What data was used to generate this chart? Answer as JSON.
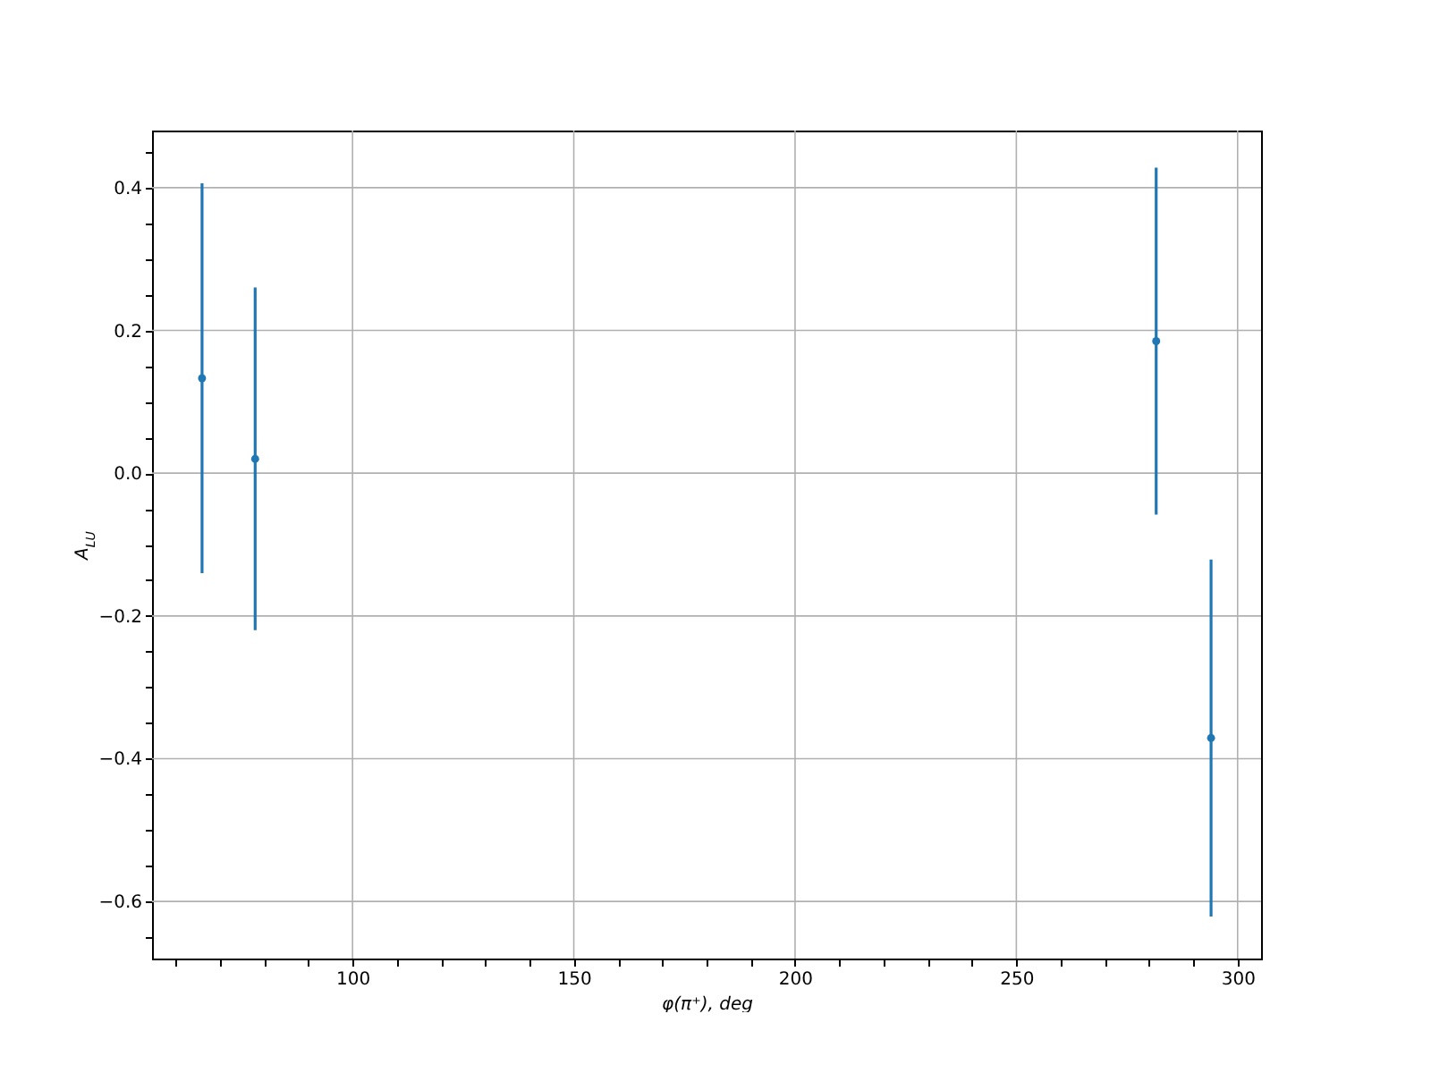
{
  "chart_data": {
    "type": "scatter",
    "xlabel": "φ(π⁺), deg",
    "ylabel": "A$_{LU}$",
    "x": [
      66,
      78,
      281.6,
      294
    ],
    "series": [
      {
        "color": "#1f77b4",
        "values": [
          0.133,
          0.02,
          0.185,
          -0.371
        ],
        "errors": [
          0.273,
          0.24,
          0.243,
          0.25
        ]
      }
    ],
    "xlim": [
      54.7,
      305.3
    ],
    "xticks": [
      {
        "value": 60,
        "label": null
      },
      {
        "value": 70,
        "label": null
      },
      {
        "value": 80,
        "label": null
      },
      {
        "value": 90,
        "label": null
      },
      100,
      {
        "value": 110,
        "label": null
      },
      {
        "value": 120,
        "label": null
      },
      {
        "value": 130,
        "label": null
      },
      {
        "value": 140,
        "label": null
      },
      150,
      {
        "value": 160,
        "label": null
      },
      {
        "value": 170,
        "label": null
      },
      {
        "value": 180,
        "label": null
      },
      {
        "value": 190,
        "label": null
      },
      200,
      {
        "value": 210,
        "label": null
      },
      {
        "value": 220,
        "label": null
      },
      {
        "value": 230,
        "label": null
      },
      {
        "value": 240,
        "label": null
      },
      250,
      {
        "value": 260,
        "label": null
      },
      {
        "value": 270,
        "label": null
      },
      {
        "value": 280,
        "label": null
      },
      {
        "value": 290,
        "label": null
      },
      300
    ],
    "ylim": [
      -0.68,
      0.48
    ],
    "yticks": [
      {
        "value": -0.65,
        "label": null
      },
      {
        "value": -0.6,
        "label": "−0.6"
      },
      {
        "value": -0.55,
        "label": null
      },
      {
        "value": -0.5,
        "label": null
      },
      {
        "value": -0.45,
        "label": null
      },
      {
        "value": -0.4,
        "label": "−0.4"
      },
      {
        "value": -0.35,
        "label": null
      },
      {
        "value": -0.3,
        "label": null
      },
      {
        "value": -0.25,
        "label": null
      },
      {
        "value": -0.2,
        "label": "−0.2"
      },
      {
        "value": -0.15,
        "label": null
      },
      {
        "value": -0.1,
        "label": null
      },
      {
        "value": -0.05,
        "label": null
      },
      {
        "value": 0,
        "label": "0.0"
      },
      {
        "value": 0.05,
        "label": null
      },
      {
        "value": 0.1,
        "label": null
      },
      {
        "value": 0.15,
        "label": null
      },
      {
        "value": 0.2,
        "label": "0.2"
      },
      {
        "value": 0.25,
        "label": null
      },
      {
        "value": 0.3,
        "label": null
      },
      {
        "value": 0.35,
        "label": null
      },
      {
        "value": 0.4,
        "label": "0.4"
      },
      {
        "value": 0.45,
        "label": null
      }
    ],
    "grid": true,
    "marker": "circle"
  }
}
